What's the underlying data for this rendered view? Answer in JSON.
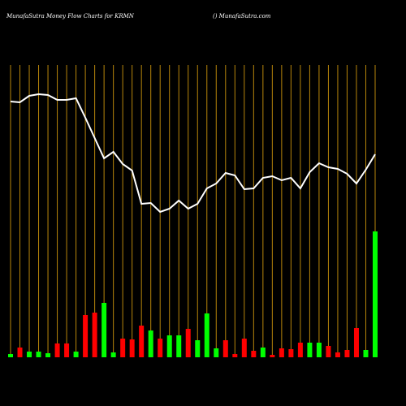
{
  "chart_data": {
    "type": "moneyflow",
    "title": "MunafaSutra  Money Flow  Charts for KRMN",
    "subtitle": "() MunafaSutra.com",
    "categories": [
      null,
      null,
      null,
      null,
      null,
      null,
      null,
      null,
      null,
      null,
      null,
      null,
      null,
      null,
      null,
      null,
      null,
      null,
      null,
      null,
      null,
      null,
      null,
      null,
      null,
      null,
      null,
      null,
      null,
      null,
      null,
      null,
      null,
      null,
      null,
      null,
      null,
      null,
      null,
      null
    ],
    "ylim": [
      0,
      360
    ],
    "grid_color": "#b8860b",
    "line": {
      "color": "#ffffff",
      "values": [
        315,
        314,
        322,
        324,
        323,
        317,
        317,
        319,
        295,
        270,
        245,
        253,
        238,
        230,
        189,
        190,
        179,
        183,
        193,
        183,
        189,
        208,
        214,
        227,
        224,
        207,
        208,
        221,
        223,
        218,
        221,
        208,
        228,
        239,
        234,
        232,
        226,
        214,
        231,
        250
      ]
    },
    "bars": {
      "colors": [
        "#00ff00",
        "#ff0000",
        "#00ff00",
        "#00ff00",
        "#00ff00",
        "#ff0000",
        "#ff0000",
        "#00ff00",
        "#ff0000",
        "#ff0000",
        "#00ff00",
        "#00ff00",
        "#ff0000",
        "#ff0000",
        "#ff0000",
        "#00ff00",
        "#ff0000",
        "#00ff00",
        "#00ff00",
        "#ff0000",
        "#00ff00",
        "#00ff00",
        "#00ff00",
        "#ff0000",
        "#ff0000",
        "#ff0000",
        "#ff0000",
        "#00ff00",
        "#ff0000",
        "#ff0000",
        "#ff0000",
        "#ff0000",
        "#00ff00",
        "#00ff00",
        "#ff0000",
        "#ff0000",
        "#ff0000",
        "#ff0000",
        "#00ff00",
        "#00ff00"
      ],
      "values": [
        4,
        12,
        7,
        7,
        5,
        17,
        17,
        7,
        52,
        55,
        67,
        6,
        23,
        22,
        39,
        33,
        23,
        27,
        27,
        35,
        21,
        54,
        11,
        21,
        4,
        23,
        8,
        12,
        3,
        11,
        10,
        18,
        18,
        18,
        14,
        6,
        9,
        36,
        9,
        155
      ]
    }
  }
}
